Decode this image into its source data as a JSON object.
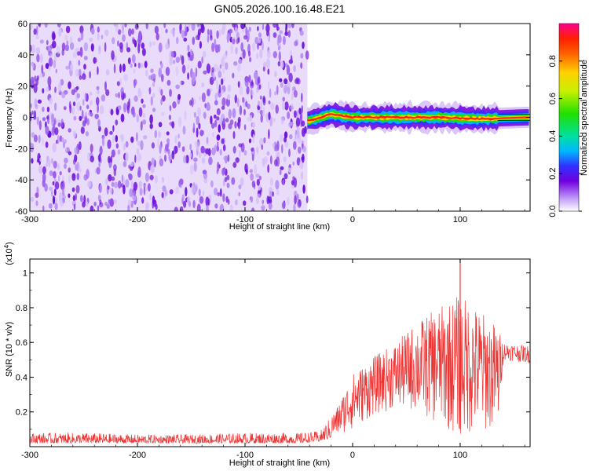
{
  "title": "GN05.2026.100.16.48.E21",
  "top_panel": {
    "xlabel": "Height of straight line (km)",
    "ylabel": "Frequency (Hz)",
    "xlim": [
      -300,
      165
    ],
    "ylim": [
      -60,
      60
    ],
    "xticks": [
      -300,
      -200,
      -100,
      0,
      100
    ],
    "yticks": [
      60,
      40,
      20,
      0,
      -20,
      -40,
      -60
    ],
    "colorbar": {
      "label": "Normalized spectral amplitude",
      "ticks": [
        "0.0",
        "0.2",
        "0.4",
        "0.6",
        "0.8"
      ],
      "range": [
        0,
        1
      ],
      "colors": [
        "#ffffff",
        "#c8a8f8",
        "#7000e0",
        "#3030ff",
        "#00b8ff",
        "#00e0a0",
        "#20e000",
        "#c8f000",
        "#ffd000",
        "#ff6000",
        "#ff2000",
        "#ff0090"
      ]
    },
    "noise_region_km": [
      -300,
      -42
    ],
    "noise_color": "#7a22e0",
    "signal_band": {
      "start_km": -42,
      "end_km": 165,
      "center_hz": 0,
      "halfwidth_hz": 3
    }
  },
  "chart_data": [
    {
      "type": "heatmap",
      "title": "GN05.2026.100.16.48.E21",
      "xlabel": "Height of straight line (km)",
      "ylabel": "Frequency (Hz)",
      "xlim": [
        -300,
        165
      ],
      "ylim": [
        -60,
        60
      ],
      "colorbar_label": "Normalized spectral amplitude",
      "description_points": [
        {
          "height_km": -40,
          "peak_freq_hz": -2
        },
        {
          "height_km": -20,
          "peak_freq_hz": 2
        },
        {
          "height_km": 0,
          "peak_freq_hz": 0
        },
        {
          "height_km": 40,
          "peak_freq_hz": 0
        },
        {
          "height_km": 80,
          "peak_freq_hz": 0
        },
        {
          "height_km": 120,
          "peak_freq_hz": -1
        },
        {
          "height_km": 160,
          "peak_freq_hz": 0
        }
      ]
    },
    {
      "type": "line",
      "xlabel": "Height of straight line (km)",
      "ylabel": "SNR (10 * v/v)",
      "y_multiplier": "x10^4",
      "xlim": [
        -300,
        165
      ],
      "ylim": [
        0,
        1.08
      ],
      "xticks": [
        -300,
        -200,
        -100,
        0,
        100
      ],
      "yticks": [
        0.2,
        0.4,
        0.6,
        0.8,
        1.0
      ],
      "series_color": "#ee3333",
      "envelope": {
        "x": [
          -300,
          -250,
          -200,
          -150,
          -100,
          -50,
          -30,
          -15,
          0,
          20,
          40,
          60,
          80,
          100,
          120,
          135,
          140,
          165
        ],
        "lower": [
          0.02,
          0.02,
          0.02,
          0.02,
          0.02,
          0.02,
          0.03,
          0.06,
          0.1,
          0.18,
          0.22,
          0.2,
          0.12,
          0.05,
          0.08,
          0.1,
          0.5,
          0.48
        ],
        "upper": [
          0.08,
          0.08,
          0.07,
          0.07,
          0.08,
          0.08,
          0.09,
          0.22,
          0.42,
          0.52,
          0.6,
          0.72,
          0.8,
          0.88,
          0.78,
          0.7,
          0.6,
          0.58
        ]
      },
      "spike": {
        "x": 100,
        "y": 1.08
      }
    }
  ]
}
